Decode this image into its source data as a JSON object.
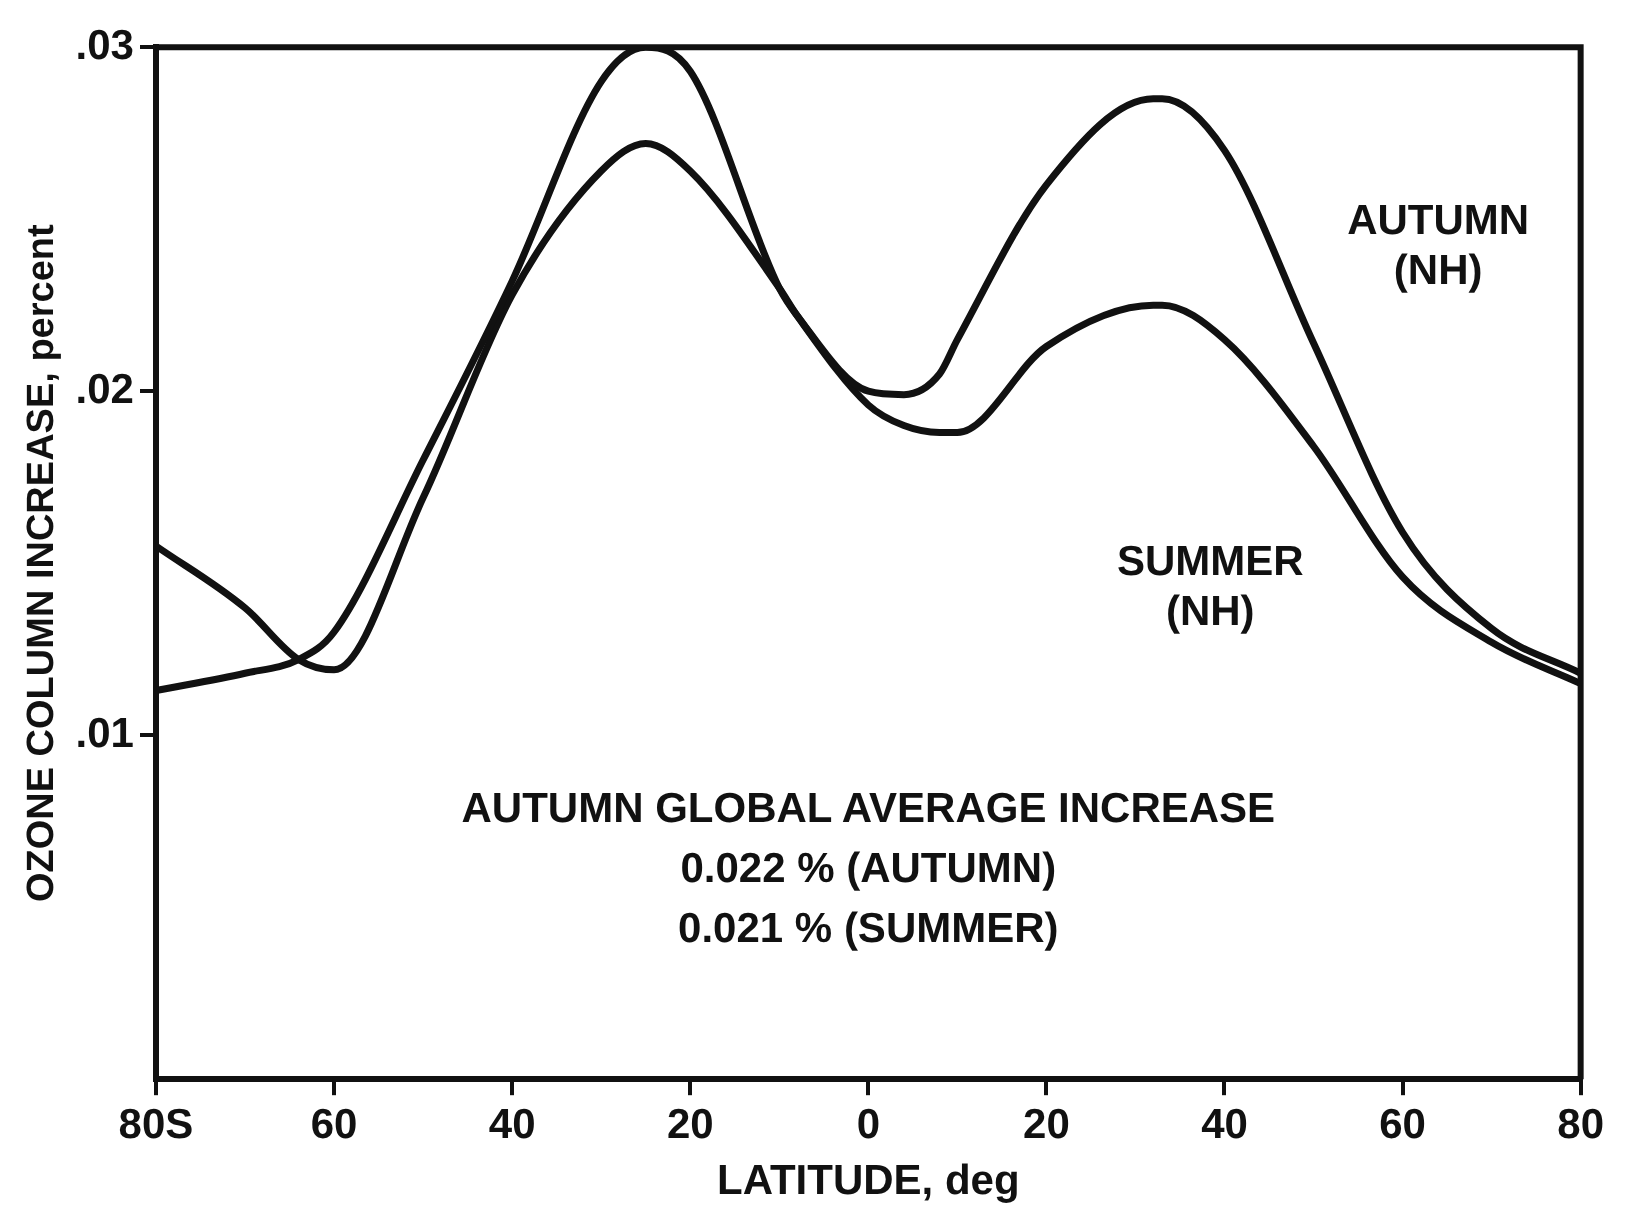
{
  "chart_data": {
    "type": "line",
    "xlabel": "LATITUDE, deg",
    "ylabel": "OZONE COLUMN INCREASE, percent",
    "x": [
      -80,
      -70,
      -64,
      -60,
      -50,
      -40,
      -30,
      -25,
      -20,
      -10,
      -8,
      0,
      4,
      8,
      10,
      20,
      32,
      33,
      40,
      50,
      60,
      70,
      80
    ],
    "series": [
      {
        "name": "AUTUMN (NH)",
        "color": "#111111",
        "values": [
          0.0113,
          0.0118,
          0.0122,
          0.013,
          0.018,
          0.0232,
          0.029,
          0.03,
          0.0293,
          0.023,
          0.0222,
          0.02,
          0.0199,
          0.0205,
          0.0215,
          0.026,
          0.0285,
          0.0285,
          0.027,
          0.0214,
          0.0159,
          0.0131,
          0.0118
        ]
      },
      {
        "name": "SUMMER (NH)",
        "color": "#111111",
        "values": [
          0.0155,
          0.0137,
          0.0122,
          0.0119,
          0.0169,
          0.0228,
          0.0264,
          0.0272,
          0.0264,
          0.023,
          0.0222,
          0.0196,
          0.019,
          0.0188,
          0.0188,
          0.0213,
          0.0225,
          0.0225,
          0.0215,
          0.0184,
          0.0146,
          0.0127,
          0.0115
        ]
      }
    ],
    "xlim": [
      -80,
      80
    ],
    "xticks": [
      {
        "value": -80,
        "label": "80S"
      },
      {
        "value": -60,
        "label": "60"
      },
      {
        "value": -40,
        "label": "40"
      },
      {
        "value": -20,
        "label": "20"
      },
      {
        "value": 0,
        "label": "0"
      },
      {
        "value": 20,
        "label": "20"
      },
      {
        "value": 40,
        "label": "40"
      },
      {
        "value": 60,
        "label": "60"
      },
      {
        "value": 80,
        "label": "80"
      }
    ],
    "ylim": [
      0,
      0.03
    ],
    "yticks": [
      {
        "value": 0.01,
        "label": ".01"
      },
      {
        "value": 0.02,
        "label": ".02"
      },
      {
        "value": 0.03,
        "label": ".03"
      }
    ],
    "grid": false,
    "legend": false,
    "marker": "none",
    "line_style": "solid",
    "annotations": [
      "AUTUMN GLOBAL AVERAGE INCREASE",
      "0.022 % (AUTUMN)",
      "0.021 % (SUMMER)"
    ]
  }
}
